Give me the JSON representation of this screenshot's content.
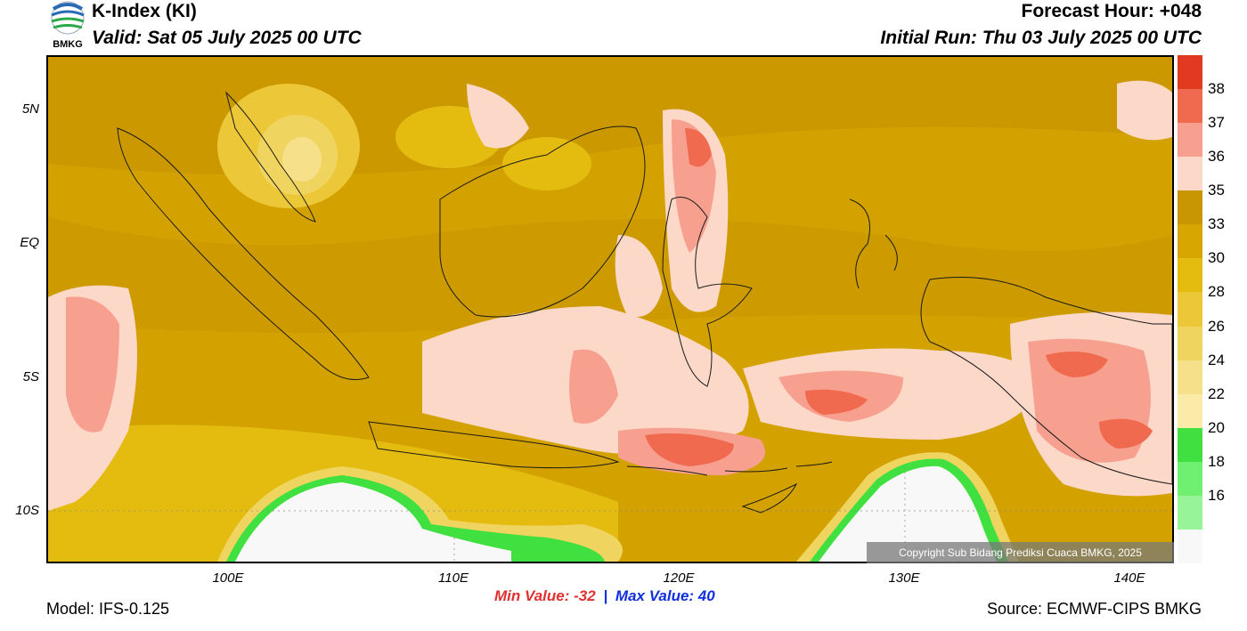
{
  "header": {
    "title": "K-Index (KI)",
    "valid": "Valid: Sat 05 July 2025 00 UTC",
    "forecast_hour": "Forecast Hour: +048",
    "initial_run": "Initial Run: Thu 03 July 2025 00 UTC",
    "logo_text": "BMKG"
  },
  "map": {
    "lat_labels": [
      "5N",
      "EQ",
      "5S",
      "10S"
    ],
    "lon_labels": [
      "100E",
      "110E",
      "120E",
      "130E",
      "140E"
    ]
  },
  "legend": {
    "bins": [
      {
        "label": "38",
        "color": "#e03a20"
      },
      {
        "label": "37",
        "color": "#f06a50"
      },
      {
        "label": "36",
        "color": "#f8a090"
      },
      {
        "label": "35",
        "color": "#fcd8c8"
      },
      {
        "label": "33",
        "color": "#c89600"
      },
      {
        "label": "30",
        "color": "#d8a600"
      },
      {
        "label": "28",
        "color": "#e4bc10"
      },
      {
        "label": "26",
        "color": "#ecc838"
      },
      {
        "label": "24",
        "color": "#f0d460"
      },
      {
        "label": "22",
        "color": "#f6e08a"
      },
      {
        "label": "20",
        "color": "#faeca8"
      },
      {
        "label": "18",
        "color": "#40e040"
      },
      {
        "label": "16",
        "color": "#70f070"
      },
      {
        "label": "",
        "color": "#98f498"
      },
      {
        "label": "",
        "color": "#f8f8f8"
      }
    ]
  },
  "stats": {
    "min_label": "Min Value: -32",
    "separator": "|",
    "max_label": "Max Value:  40",
    "min_color": "#e03030",
    "max_color": "#1030e0"
  },
  "copyright": "Copyright Sub Bidang Prediksi Cuaca BMKG, 2025",
  "footer": {
    "model": "Model: IFS-0.125",
    "source": "Source: ECMWF-CIPS BMKG"
  }
}
